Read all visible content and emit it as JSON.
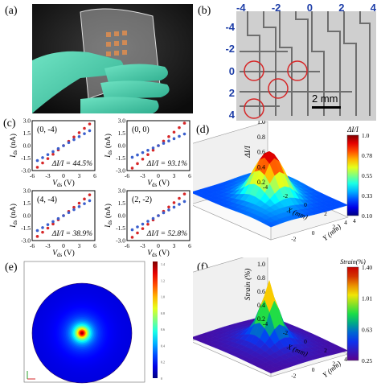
{
  "panel_labels": {
    "a": "(a)",
    "b": "(b)",
    "c": "(c)",
    "d": "(d)",
    "e": "(e)",
    "f": "(f)"
  },
  "panel_b": {
    "top_ticks": [
      "-4",
      "-2",
      "0",
      "2",
      "4"
    ],
    "left_ticks": [
      "-4",
      "-2",
      "0",
      "2",
      "4"
    ],
    "scale_bar": "2 mm",
    "circled_cells": [
      [
        "0",
        "-4"
      ],
      [
        "0",
        "0"
      ],
      [
        "4",
        "-4"
      ],
      [
        "2",
        "-2"
      ]
    ]
  },
  "chart_data": [
    {
      "type": "scatter",
      "panel": "c-1",
      "annotation": "(0, -4)",
      "delta": "ΔI/I = 44.5%",
      "xlabel": "V_ds (V)",
      "ylabel": "I_ds (nA)",
      "xlim": [
        -6,
        6
      ],
      "ylim": [
        -3,
        3
      ],
      "x_ticks": [
        "-6",
        "-3",
        "0",
        "3",
        "6"
      ],
      "y_ticks": [
        "3.0",
        "1.5",
        "0.0",
        "-1.5",
        "-3.0"
      ],
      "series": [
        {
          "color": "#d62728",
          "x": [
            -5,
            -4,
            -3,
            -2,
            -1,
            0,
            1,
            2,
            3,
            4,
            5
          ],
          "y": [
            -2.6,
            -2.08,
            -1.56,
            -1.04,
            -0.52,
            0,
            0.52,
            1.04,
            1.56,
            2.08,
            2.6
          ]
        },
        {
          "color": "#3a5fcd",
          "x": [
            -5,
            -4,
            -3,
            -2,
            -1,
            0,
            1,
            2,
            3,
            4,
            5
          ],
          "y": [
            -1.8,
            -1.44,
            -1.08,
            -0.72,
            -0.36,
            0,
            0.36,
            0.72,
            1.08,
            1.44,
            1.8
          ]
        }
      ]
    },
    {
      "type": "scatter",
      "panel": "c-2",
      "annotation": "(0, 0)",
      "delta": "ΔI/I = 93.1%",
      "xlabel": "V_ds (V)",
      "ylabel": "I_ds (nA)",
      "xlim": [
        -6,
        6
      ],
      "ylim": [
        -3,
        3
      ],
      "x_ticks": [
        "-6",
        "-3",
        "0",
        "3",
        "6"
      ],
      "y_ticks": [
        "3.0",
        "1.5",
        "0.0",
        "-1.5",
        "-3.0"
      ],
      "series": [
        {
          "color": "#d62728",
          "x": [
            -5,
            -4,
            -3,
            -2,
            -1,
            0,
            1,
            2,
            3,
            4,
            5
          ],
          "y": [
            -2.7,
            -2.16,
            -1.62,
            -1.08,
            -0.54,
            0,
            0.54,
            1.08,
            1.62,
            2.16,
            2.7
          ]
        },
        {
          "color": "#3a5fcd",
          "x": [
            -5,
            -4,
            -3,
            -2,
            -1,
            0,
            1,
            2,
            3,
            4,
            5
          ],
          "y": [
            -1.4,
            -1.12,
            -0.84,
            -0.56,
            -0.28,
            0,
            0.28,
            0.56,
            0.84,
            1.12,
            1.4
          ]
        }
      ]
    },
    {
      "type": "scatter",
      "panel": "c-3",
      "annotation": "(4, -4)",
      "delta": "ΔI/I = 38.9%",
      "xlabel": "V_ds (V)",
      "ylabel": "I_ds (nA)",
      "xlim": [
        -6,
        6
      ],
      "ylim": [
        -3,
        3
      ],
      "x_ticks": [
        "-6",
        "-3",
        "0",
        "3",
        "6"
      ],
      "y_ticks": [
        "3.0",
        "1.5",
        "0.0",
        "-1.5",
        "-3.0"
      ],
      "series": [
        {
          "color": "#d62728",
          "x": [
            -5,
            -4,
            -3,
            -2,
            -1,
            0,
            1,
            2,
            3,
            4,
            5
          ],
          "y": [
            -2.5,
            -2.0,
            -1.5,
            -1.0,
            -0.5,
            0,
            0.5,
            1.0,
            1.5,
            2.0,
            2.5
          ]
        },
        {
          "color": "#3a5fcd",
          "x": [
            -5,
            -4,
            -3,
            -2,
            -1,
            0,
            1,
            2,
            3,
            4,
            5
          ],
          "y": [
            -1.8,
            -1.44,
            -1.08,
            -0.72,
            -0.36,
            0,
            0.36,
            0.72,
            1.08,
            1.44,
            1.8
          ]
        }
      ]
    },
    {
      "type": "scatter",
      "panel": "c-4",
      "annotation": "(2, -2)",
      "delta": "ΔI/I = 52.8%",
      "xlabel": "V_ds (V)",
      "ylabel": "I_ds (nA)",
      "xlim": [
        -6,
        6
      ],
      "ylim": [
        -3,
        3
      ],
      "x_ticks": [
        "-6",
        "-3",
        "0",
        "3",
        "6"
      ],
      "y_ticks": [
        "3.0",
        "1.5",
        "0.0",
        "-1.5",
        "-3.0"
      ],
      "series": [
        {
          "color": "#d62728",
          "x": [
            -5,
            -4,
            -3,
            -2,
            -1,
            0,
            1,
            2,
            3,
            4,
            5
          ],
          "y": [
            -2.6,
            -2.08,
            -1.56,
            -1.04,
            -0.52,
            0,
            0.52,
            1.04,
            1.56,
            2.08,
            2.6
          ]
        },
        {
          "color": "#3a5fcd",
          "x": [
            -5,
            -4,
            -3,
            -2,
            -1,
            0,
            1,
            2,
            3,
            4,
            5
          ],
          "y": [
            -1.7,
            -1.36,
            -1.02,
            -0.68,
            -0.34,
            0,
            0.34,
            0.68,
            1.02,
            1.36,
            1.7
          ]
        }
      ]
    },
    {
      "type": "heatmap",
      "panel": "d",
      "zlabel": "ΔI/I",
      "xlabel": "X (mm)",
      "ylabel": "Y (mm)",
      "z_ticks": [
        "1.0",
        "0.8",
        "0.6",
        "0.4",
        "0.2"
      ],
      "x_ticks": [
        "-4",
        "-2",
        "0",
        "2",
        "4"
      ],
      "y_ticks": [
        "-2",
        "0",
        "2",
        "4"
      ],
      "colorbar_title": "ΔI/I",
      "colorbar_ticks": [
        "1.0",
        "0.78",
        "0.55",
        "0.33",
        "0.10"
      ],
      "zlim": [
        0.1,
        1.0
      ]
    },
    {
      "type": "heatmap",
      "panel": "e",
      "colorbar_ticks": [
        "1.4",
        "1.2",
        "1.0",
        "0.8",
        "0.6",
        "0.4",
        "0.2",
        "0"
      ]
    },
    {
      "type": "heatmap",
      "panel": "f",
      "zlabel": "Strain (%)",
      "xlabel": "X (mm)",
      "ylabel": "Y (mm)",
      "z_ticks": [
        "1.2",
        "1.0",
        "0.8",
        "0.6",
        "0.4",
        "0.2"
      ],
      "x_ticks": [
        "-4",
        "-2",
        "0",
        "2",
        "4"
      ],
      "y_ticks": [
        "-2",
        "0",
        "2",
        "4"
      ],
      "colorbar_title": "Strain(%)",
      "colorbar_ticks": [
        "1.40",
        "1.01",
        "0.63",
        "0.25"
      ],
      "zlim": [
        0.2,
        1.4
      ]
    }
  ]
}
